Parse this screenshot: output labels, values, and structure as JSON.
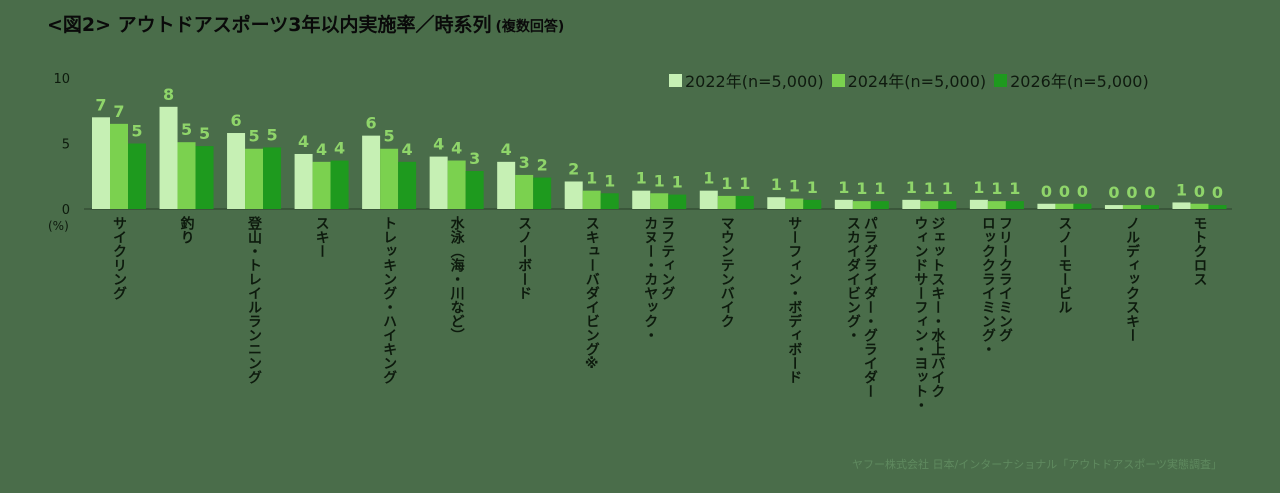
{
  "title": "<図2> アウトドアスポーツ3年以内実施率／時系列",
  "subtitle": "(複数回答)",
  "source_note": "ヤフー株式会社 日本/インターナショナル「アウトドアスポーツ実態調査」",
  "colors": {
    "background": "#4a6d4a",
    "series_2022": "#c6f0b4",
    "series_2024": "#7bd14f",
    "series_2026": "#1e9a1e",
    "data_label": "#8fd56a",
    "axis_text": "#0d1a0d"
  },
  "chart_data": {
    "type": "bar",
    "unit_label": "(%)",
    "ylim": [
      0,
      10
    ],
    "yticks": [
      0,
      5,
      10
    ],
    "legend_position": "top-right",
    "grid": false,
    "categories": [
      "サイクリング",
      "釣り",
      "登山・トレイルランニング",
      "スキー",
      "トレッキング・ハイキング",
      "水泳（海・川など）",
      "スノーボード",
      "スキューバダイビング※",
      "カヌー・カヤック・ラフティング",
      "マウンテンバイク",
      "サーフィン・ボディボード",
      "スカイダイビング・パラグライダー・グライダー",
      "ウィンドサーフィン・ヨット・ジェットスキー・水上バイク",
      "ロッククライミング・フリークライミング",
      "スノーモービル",
      "ノルディックスキー",
      "モトクロス"
    ],
    "category_lines": [
      [
        "サイクリング"
      ],
      [
        "釣り"
      ],
      [
        "登山・トレイルランニング"
      ],
      [
        "スキー"
      ],
      [
        "トレッキング・ハイキング"
      ],
      [
        "水泳（海・川など）"
      ],
      [
        "スノーボード"
      ],
      [
        "スキューバダイビング※"
      ],
      [
        "カヌー・カヤック・",
        "ラフティング"
      ],
      [
        "マウンテンバイク"
      ],
      [
        "サーフィン・ボディボード"
      ],
      [
        "スカイダイビング・",
        "パラグライダー・グライダー"
      ],
      [
        "ウィンドサーフィン・ヨット・",
        "ジェットスキー・水上バイク"
      ],
      [
        "ロッククライミング・",
        "フリークライミング"
      ],
      [
        "スノーモービル"
      ],
      [
        "ノルディックスキー"
      ],
      [
        "モトクロス"
      ]
    ],
    "series": [
      {
        "name": "2022年(n=5,000)",
        "values": [
          7.0,
          7.8,
          5.8,
          4.2,
          5.6,
          4.0,
          3.6,
          2.1,
          1.4,
          1.4,
          0.9,
          0.7,
          0.7,
          0.7,
          0.4,
          0.3,
          0.5
        ],
        "labels": [
          "7",
          "8",
          "6",
          "4",
          "6",
          "4",
          "4",
          "2",
          "1",
          "1",
          "1",
          "1",
          "1",
          "1",
          "0",
          "0",
          "1"
        ]
      },
      {
        "name": "2024年(n=5,000)",
        "values": [
          6.5,
          5.1,
          4.6,
          3.6,
          4.6,
          3.7,
          2.6,
          1.4,
          1.2,
          1.0,
          0.8,
          0.6,
          0.6,
          0.6,
          0.4,
          0.3,
          0.4
        ],
        "labels": [
          "7",
          "5",
          "5",
          "4",
          "5",
          "4",
          "3",
          "1",
          "1",
          "1",
          "1",
          "1",
          "1",
          "1",
          "0",
          "0",
          "0"
        ]
      },
      {
        "name": "2026年(n=5,000)",
        "values": [
          5.0,
          4.8,
          4.7,
          3.7,
          3.6,
          2.9,
          2.4,
          1.2,
          1.1,
          1.0,
          0.7,
          0.6,
          0.6,
          0.6,
          0.4,
          0.3,
          0.3
        ],
        "labels": [
          "5",
          "5",
          "5",
          "4",
          "4",
          "3",
          "2",
          "1",
          "1",
          "1",
          "1",
          "1",
          "1",
          "1",
          "0",
          "0",
          "0"
        ]
      }
    ]
  }
}
